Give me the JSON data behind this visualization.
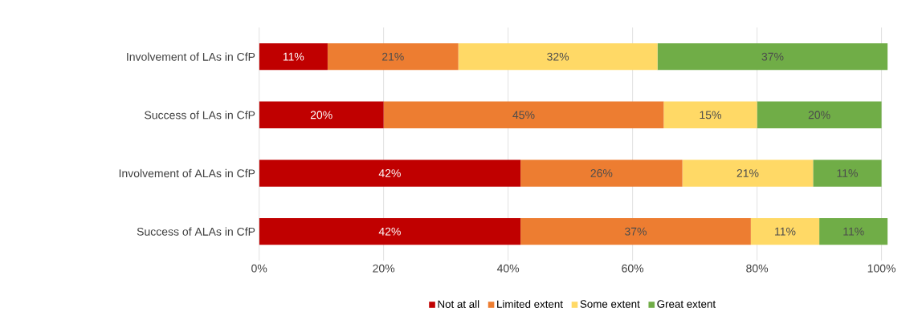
{
  "chart_data": {
    "type": "bar",
    "orientation": "horizontal",
    "stacked": true,
    "categories": [
      "Involvement of LAs in CfP",
      "Success of LAs in CfP",
      "Involvement of ALAs in CfP",
      "Success of ALAs in CfP"
    ],
    "series": [
      {
        "name": "Not at all",
        "color": "#c00000",
        "values": [
          11,
          20,
          42,
          42
        ],
        "value_labels": [
          "11%",
          "20%",
          "42%",
          "42%"
        ]
      },
      {
        "name": "Limited extent",
        "color": "#ed7d31",
        "values": [
          21,
          45,
          26,
          37
        ],
        "value_labels": [
          "21%",
          "45%",
          "26%",
          "37%"
        ]
      },
      {
        "name": "Some extent",
        "color": "#ffd966",
        "values": [
          32,
          15,
          21,
          11
        ],
        "value_labels": [
          "32%",
          "15%",
          "21%",
          "11%"
        ]
      },
      {
        "name": "Great extent",
        "color": "#70ad47",
        "values": [
          37,
          20,
          11,
          11
        ],
        "value_labels": [
          "37%",
          "20%",
          "11%",
          "11%"
        ]
      }
    ],
    "xlim": [
      0,
      101
    ],
    "xticks": [
      {
        "value": 0,
        "label": "0%"
      },
      {
        "value": 20,
        "label": "20%"
      },
      {
        "value": 40,
        "label": "40%"
      },
      {
        "value": 60,
        "label": "60%"
      },
      {
        "value": 80,
        "label": "80%"
      },
      {
        "value": 100,
        "label": "100%"
      }
    ],
    "grid": "x",
    "legend": "bottom"
  }
}
